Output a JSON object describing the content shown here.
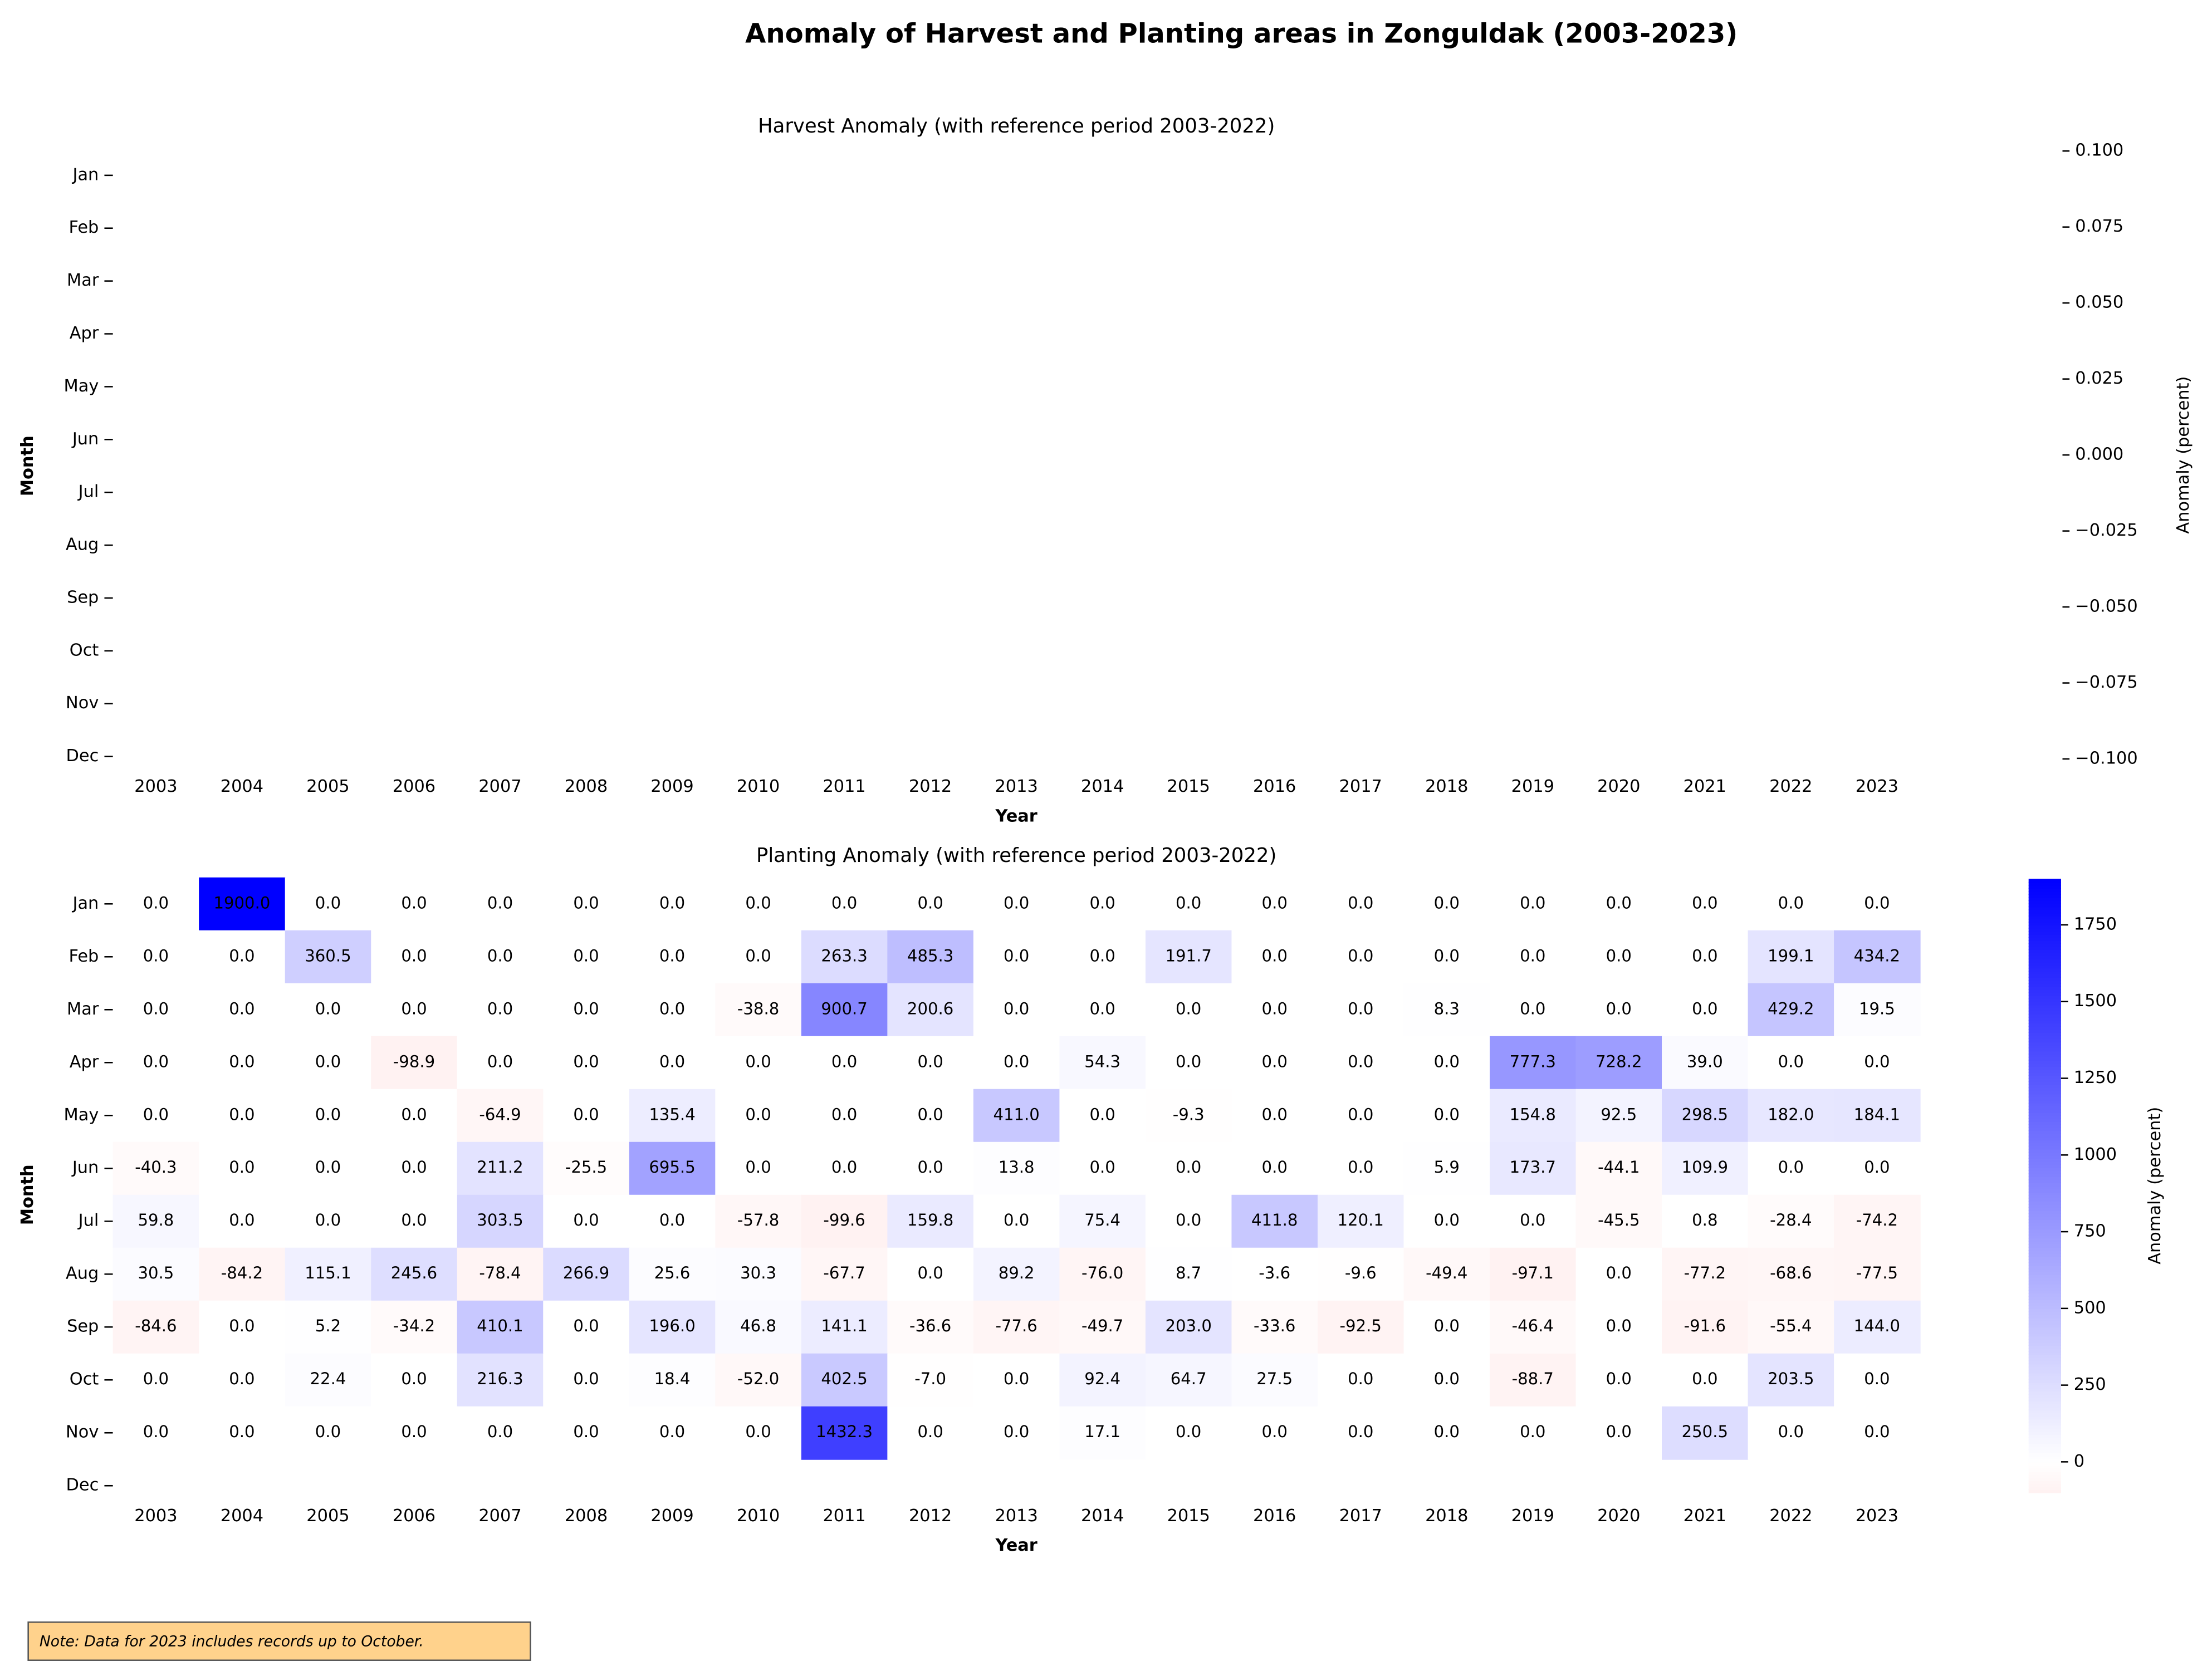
{
  "title": "Anomaly of Harvest and Planting areas in Zonguldak (2003-2023)",
  "note": "Note: Data for 2023 includes records up to October.",
  "chart_data": [
    {
      "type": "heatmap",
      "title": "Harvest Anomaly (with reference period 2003-2022)",
      "xlabel": "Year",
      "ylabel": "Month",
      "x_categories": [
        "2003",
        "2004",
        "2005",
        "2006",
        "2007",
        "2008",
        "2009",
        "2010",
        "2011",
        "2012",
        "2013",
        "2014",
        "2015",
        "2016",
        "2017",
        "2018",
        "2019",
        "2020",
        "2021",
        "2022",
        "2023"
      ],
      "y_categories": [
        "Jan",
        "Feb",
        "Mar",
        "Apr",
        "May",
        "Jun",
        "Jul",
        "Aug",
        "Sep",
        "Oct",
        "Nov",
        "Dec"
      ],
      "colorbar_label": "Anomaly (percent)",
      "clim": [
        -0.1,
        0.1
      ],
      "cticks": [
        {
          "value": 0.1,
          "label": "0.100"
        },
        {
          "value": 0.075,
          "label": "0.075"
        },
        {
          "value": 0.05,
          "label": "0.050"
        },
        {
          "value": 0.025,
          "label": "0.025"
        },
        {
          "value": 0,
          "label": "0.000"
        },
        {
          "value": -0.025,
          "label": "−0.025"
        },
        {
          "value": -0.05,
          "label": "−0.050"
        },
        {
          "value": -0.075,
          "label": "−0.075"
        },
        {
          "value": -0.1,
          "label": "−0.100"
        }
      ],
      "show_colorbar_bar": false
    },
    {
      "type": "heatmap",
      "title": "Planting Anomaly (with reference period 2003-2022)",
      "xlabel": "Year",
      "ylabel": "Month",
      "x_categories": [
        "2003",
        "2004",
        "2005",
        "2006",
        "2007",
        "2008",
        "2009",
        "2010",
        "2011",
        "2012",
        "2013",
        "2014",
        "2015",
        "2016",
        "2017",
        "2018",
        "2019",
        "2020",
        "2021",
        "2022",
        "2023"
      ],
      "y_categories": [
        "Jan",
        "Feb",
        "Mar",
        "Apr",
        "May",
        "Jun",
        "Jul",
        "Aug",
        "Sep",
        "Oct",
        "Nov",
        "Dec"
      ],
      "colorbar_label": "Anomaly (percent)",
      "clim": [
        -99.6,
        1900
      ],
      "cticks": [
        0,
        250,
        500,
        750,
        1000,
        1250,
        1500,
        1750
      ],
      "show_colorbar_bar": true,
      "neg_color": "#ff0000",
      "mid_color": "#ffffff",
      "pos_color": "#0000ff",
      "values": [
        [
          0,
          1900,
          0,
          0,
          0,
          0,
          0,
          0,
          0,
          0,
          0,
          0,
          0,
          0,
          0,
          0,
          0,
          0,
          0,
          0,
          0
        ],
        [
          0,
          0,
          360.5,
          0,
          0,
          0,
          0,
          0,
          263.3,
          485.3,
          0,
          0,
          191.7,
          0,
          0,
          0,
          0,
          0,
          0,
          199.1,
          434.2
        ],
        [
          0,
          0,
          0,
          0,
          0,
          0,
          0,
          -38.8,
          900.7,
          200.6,
          0,
          0,
          0,
          0,
          0,
          8.3,
          0,
          0,
          0,
          429.2,
          19.5
        ],
        [
          0,
          0,
          0,
          -98.9,
          0,
          0,
          0,
          0,
          0,
          0,
          0,
          54.3,
          0,
          0,
          0,
          0,
          777.3,
          728.2,
          39,
          0,
          0
        ],
        [
          0,
          0,
          0,
          0,
          -64.9,
          0,
          135.4,
          0,
          0,
          0,
          411,
          0,
          -9.3,
          0,
          0,
          0,
          154.8,
          92.5,
          298.5,
          182,
          184.1
        ],
        [
          -40.3,
          0,
          0,
          0,
          211.2,
          -25.5,
          695.5,
          0,
          0,
          0,
          13.8,
          0,
          0,
          0,
          0,
          5.9,
          173.7,
          -44.1,
          109.9,
          0,
          0
        ],
        [
          59.8,
          0,
          0,
          0,
          303.5,
          0,
          0,
          -57.8,
          -99.6,
          159.8,
          0,
          75.4,
          0,
          411.8,
          120.1,
          0,
          0,
          -45.5,
          0.8,
          -28.4,
          -74.2
        ],
        [
          30.5,
          -84.2,
          115.1,
          245.6,
          -78.4,
          266.9,
          25.6,
          30.3,
          -67.7,
          0,
          89.2,
          -76,
          8.7,
          -3.6,
          -9.6,
          -49.4,
          -97.1,
          0,
          -77.2,
          -68.6,
          -77.5
        ],
        [
          -84.6,
          0,
          5.2,
          -34.2,
          410.1,
          0,
          196,
          46.8,
          141.1,
          -36.6,
          -77.6,
          -49.7,
          203,
          -33.6,
          -92.5,
          0,
          -46.4,
          0,
          -91.6,
          -55.4,
          144
        ],
        [
          0,
          0,
          22.4,
          0,
          216.3,
          0,
          18.4,
          -52,
          402.5,
          -7,
          0,
          92.4,
          64.7,
          27.5,
          0,
          0,
          -88.7,
          0,
          0,
          203.5,
          0
        ],
        [
          0,
          0,
          0,
          0,
          0,
          0,
          0,
          0,
          1432.3,
          0,
          0,
          17.1,
          0,
          0,
          0,
          0,
          0,
          0,
          250.5,
          0,
          0
        ],
        [
          null,
          null,
          null,
          null,
          null,
          null,
          null,
          null,
          null,
          null,
          null,
          null,
          null,
          null,
          null,
          null,
          null,
          null,
          null,
          null,
          null
        ]
      ],
      "value_labels": [
        [
          "0.0",
          "1900.0",
          "0.0",
          "0.0",
          "0.0",
          "0.0",
          "0.0",
          "0.0",
          "0.0",
          "0.0",
          "0.0",
          "0.0",
          "0.0",
          "0.0",
          "0.0",
          "0.0",
          "0.0",
          "0.0",
          "0.0",
          "0.0",
          "0.0"
        ],
        [
          "0.0",
          "0.0",
          "360.5",
          "0.0",
          "0.0",
          "0.0",
          "0.0",
          "0.0",
          "263.3",
          "485.3",
          "0.0",
          "0.0",
          "191.7",
          "0.0",
          "0.0",
          "0.0",
          "0.0",
          "0.0",
          "0.0",
          "199.1",
          "434.2"
        ],
        [
          "0.0",
          "0.0",
          "0.0",
          "0.0",
          "0.0",
          "0.0",
          "0.0",
          "-38.8",
          "900.7",
          "200.6",
          "0.0",
          "0.0",
          "0.0",
          "0.0",
          "0.0",
          "8.3",
          "0.0",
          "0.0",
          "0.0",
          "429.2",
          "19.5"
        ],
        [
          "0.0",
          "0.0",
          "0.0",
          "-98.9",
          "0.0",
          "0.0",
          "0.0",
          "0.0",
          "0.0",
          "0.0",
          "0.0",
          "54.3",
          "0.0",
          "0.0",
          "0.0",
          "0.0",
          "777.3",
          "728.2",
          "39.0",
          "0.0",
          "0.0"
        ],
        [
          "0.0",
          "0.0",
          "0.0",
          "0.0",
          "-64.9",
          "0.0",
          "135.4",
          "0.0",
          "0.0",
          "0.0",
          "411.0",
          "0.0",
          "-9.3",
          "0.0",
          "0.0",
          "0.0",
          "154.8",
          "92.5",
          "298.5",
          "182.0",
          "184.1"
        ],
        [
          "-40.3",
          "0.0",
          "0.0",
          "0.0",
          "211.2",
          "-25.5",
          "695.5",
          "0.0",
          "0.0",
          "0.0",
          "13.8",
          "0.0",
          "0.0",
          "0.0",
          "0.0",
          "5.9",
          "173.7",
          "-44.1",
          "109.9",
          "0.0",
          "0.0"
        ],
        [
          "59.8",
          "0.0",
          "0.0",
          "0.0",
          "303.5",
          "0.0",
          "0.0",
          "-57.8",
          "-99.6",
          "159.8",
          "0.0",
          "75.4",
          "0.0",
          "411.8",
          "120.1",
          "0.0",
          "0.0",
          "-45.5",
          "0.8",
          "-28.4",
          "-74.2"
        ],
        [
          "30.5",
          "-84.2",
          "115.1",
          "245.6",
          "-78.4",
          "266.9",
          "25.6",
          "30.3",
          "-67.7",
          "0.0",
          "89.2",
          "-76.0",
          "8.7",
          "-3.6",
          "-9.6",
          "-49.4",
          "-97.1",
          "0.0",
          "-77.2",
          "-68.6",
          "-77.5"
        ],
        [
          "-84.6",
          "0.0",
          "5.2",
          "-34.2",
          "410.1",
          "0.0",
          "196.0",
          "46.8",
          "141.1",
          "-36.6",
          "-77.6",
          "-49.7",
          "203.0",
          "-33.6",
          "-92.5",
          "0.0",
          "-46.4",
          "0.0",
          "-91.6",
          "-55.4",
          "144.0"
        ],
        [
          "0.0",
          "0.0",
          "22.4",
          "0.0",
          "216.3",
          "0.0",
          "18.4",
          "-52.0",
          "402.5",
          "-7.0",
          "0.0",
          "92.4",
          "64.7",
          "27.5",
          "0.0",
          "0.0",
          "-88.7",
          "0.0",
          "0.0",
          "203.5",
          "0.0"
        ],
        [
          "0.0",
          "0.0",
          "0.0",
          "0.0",
          "0.0",
          "0.0",
          "0.0",
          "0.0",
          "1432.3",
          "0.0",
          "0.0",
          "17.1",
          "0.0",
          "0.0",
          "0.0",
          "0.0",
          "0.0",
          "0.0",
          "250.5",
          "0.0",
          "0.0"
        ],
        [
          null,
          null,
          null,
          null,
          null,
          null,
          null,
          null,
          null,
          null,
          null,
          null,
          null,
          null,
          null,
          null,
          null,
          null,
          null,
          null,
          null
        ]
      ]
    }
  ]
}
